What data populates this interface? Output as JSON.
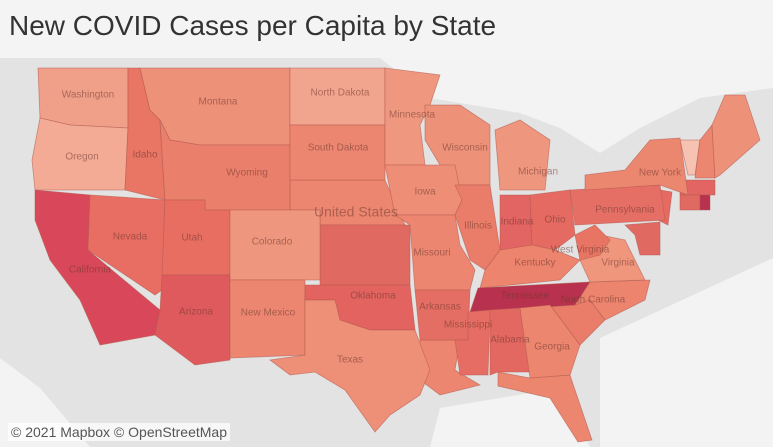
{
  "title": "New COVID Cases per Capita by State",
  "map": {
    "states": [
      {
        "name": "Washington",
        "color": "#f0a089"
      },
      {
        "name": "Oregon",
        "color": "#f3ab95"
      },
      {
        "name": "California",
        "color": "#d9485a"
      },
      {
        "name": "Nevada",
        "color": "#e86d62"
      },
      {
        "name": "Idaho",
        "color": "#e97565"
      },
      {
        "name": "Montana",
        "color": "#ee9179"
      },
      {
        "name": "Wyoming",
        "color": "#ea7f6b"
      },
      {
        "name": "Utah",
        "color": "#e86e62"
      },
      {
        "name": "Arizona",
        "color": "#df5a5d"
      },
      {
        "name": "Colorado",
        "color": "#ef977e"
      },
      {
        "name": "New Mexico",
        "color": "#ec8670"
      },
      {
        "name": "North Dakota",
        "color": "#f2a58e"
      },
      {
        "name": "South Dakota",
        "color": "#ec8670"
      },
      {
        "name": "Minnesota",
        "color": "#ef987f"
      },
      {
        "name": "Wisconsin",
        "color": "#ee9179"
      },
      {
        "name": "Michigan",
        "color": "#ef977e"
      },
      {
        "name": "Iowa",
        "color": "#ee8e76"
      },
      {
        "name": "Illinois",
        "color": "#ea7d69"
      },
      {
        "name": "Indiana",
        "color": "#e26463"
      },
      {
        "name": "Ohio",
        "color": "#e56a62"
      },
      {
        "name": "Missouri",
        "color": "#ec8670"
      },
      {
        "name": "Kentucky",
        "color": "#ec846e"
      },
      {
        "name": "Tennessee",
        "color": "#b8314e"
      },
      {
        "name": "Oklahoma",
        "color": "#e2635f"
      },
      {
        "name": "Arkansas",
        "color": "#e56e64"
      },
      {
        "name": "Mississippi",
        "color": "#e56d63"
      },
      {
        "name": "Alabama",
        "color": "#e36862"
      },
      {
        "name": "Georgia",
        "color": "#ec866f"
      },
      {
        "name": "Texas",
        "color": "#ee8f77"
      },
      {
        "name": "North Carolina",
        "color": "#ec846e"
      },
      {
        "name": "Virginia",
        "color": "#ef967d"
      },
      {
        "name": "West Virginia",
        "color": "#e87563"
      },
      {
        "name": "Pennsylvania",
        "color": "#e66f65"
      },
      {
        "name": "New York",
        "color": "#ec876f"
      }
    ],
    "country_label": "United States",
    "attribution": "© 2021 Mapbox © OpenStreetMap"
  }
}
